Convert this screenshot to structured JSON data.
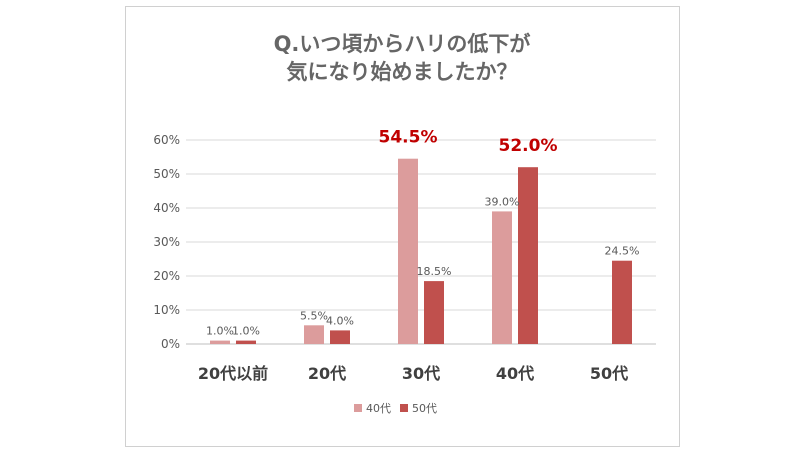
{
  "chart_data": {
    "type": "bar",
    "title": [
      "Q.いつ頃からハリの低下が",
      "気になり始めましたか？"
    ],
    "categories": [
      "20代以前",
      "20代",
      "30代",
      "40代",
      "50代"
    ],
    "series": [
      {
        "name": "40代",
        "color": "#dc9c9c",
        "values": [
          1.0,
          5.5,
          54.5,
          39.0,
          null
        ],
        "labels": [
          "1.0%",
          "5.5%",
          "54.5%",
          "39.0%",
          ""
        ]
      },
      {
        "name": "50代",
        "color": "#c0504d",
        "values": [
          1.0,
          4.0,
          18.5,
          52.0,
          24.5
        ],
        "labels": [
          "1.0%",
          "4.0%",
          "18.5%",
          "52.0%",
          "24.5%"
        ]
      }
    ],
    "highlight_labels": [
      [
        0,
        2
      ],
      [
        1,
        3
      ]
    ],
    "highlight_color": "#c00000",
    "yticks": [
      "0%",
      "10%",
      "20%",
      "30%",
      "40%",
      "50%",
      "60%"
    ],
    "ylim": [
      0,
      60
    ],
    "grid": true,
    "legend_position": "bottom"
  }
}
